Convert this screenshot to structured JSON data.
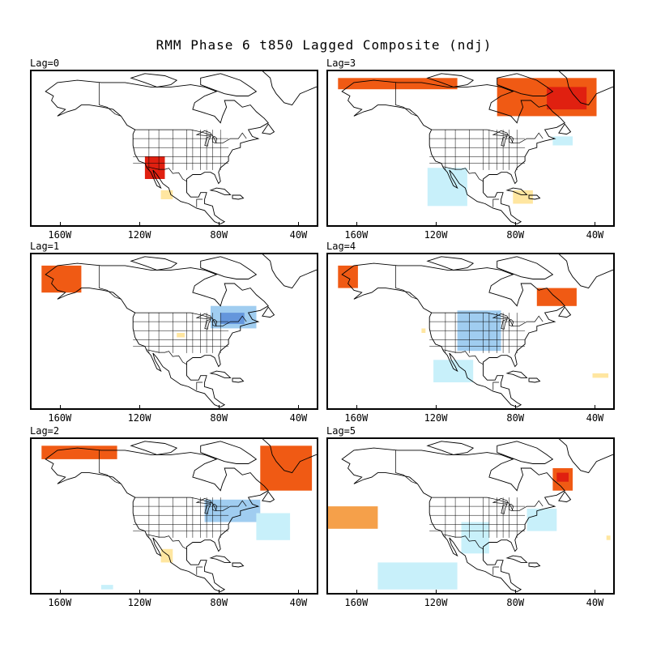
{
  "title": "RMM Phase 6 t850 Lagged Composite (ndj)",
  "x_tick_labels": [
    "160W",
    "120W",
    "80W",
    "40W"
  ],
  "colors": {
    "warm_light": "#ffe6a0",
    "warm_mid": "#f5a04a",
    "warm_strong": "#f05a14",
    "warm_max": "#e02010",
    "cool_light": "#c8f0fa",
    "cool_mid": "#a0cdf0",
    "cool_strong": "#6496dc",
    "coast": "#000000"
  },
  "panels": [
    {
      "id": "lag0",
      "label": "Lag=0",
      "anomalies": [
        {
          "kind": "warm",
          "level": "max",
          "lon": [
            -118,
            -108
          ],
          "lat": [
            27,
            37
          ]
        },
        {
          "kind": "warm",
          "level": "light",
          "lon": [
            -110,
            -104
          ],
          "lat": [
            18,
            22
          ]
        }
      ]
    },
    {
      "id": "lag3",
      "label": "Lag=3",
      "anomalies": [
        {
          "kind": "warm",
          "level": "strong",
          "lon": [
            -170,
            -110
          ],
          "lat": [
            67,
            72
          ]
        },
        {
          "kind": "warm",
          "level": "strong",
          "lon": [
            -90,
            -40
          ],
          "lat": [
            55,
            72
          ]
        },
        {
          "kind": "warm",
          "level": "max",
          "lon": [
            -65,
            -45
          ],
          "lat": [
            58,
            68
          ]
        },
        {
          "kind": "cool",
          "level": "light",
          "lon": [
            -125,
            -105
          ],
          "lat": [
            15,
            32
          ]
        },
        {
          "kind": "cool",
          "level": "light",
          "lon": [
            -62,
            -52
          ],
          "lat": [
            42,
            46
          ]
        },
        {
          "kind": "warm",
          "level": "light",
          "lon": [
            -82,
            -72
          ],
          "lat": [
            16,
            22
          ]
        }
      ]
    },
    {
      "id": "lag1",
      "label": "Lag=1",
      "anomalies": [
        {
          "kind": "warm",
          "level": "strong",
          "lon": [
            -170,
            -150
          ],
          "lat": [
            58,
            70
          ]
        },
        {
          "kind": "cool",
          "level": "mid",
          "lon": [
            -85,
            -62
          ],
          "lat": [
            42,
            52
          ]
        },
        {
          "kind": "cool",
          "level": "strong",
          "lon": [
            -80,
            -68
          ],
          "lat": [
            44,
            49
          ]
        },
        {
          "kind": "warm",
          "level": "light",
          "lon": [
            -102,
            -98
          ],
          "lat": [
            38,
            40
          ]
        }
      ]
    },
    {
      "id": "lag4",
      "label": "Lag=4",
      "anomalies": [
        {
          "kind": "warm",
          "level": "strong",
          "lon": [
            -170,
            -160
          ],
          "lat": [
            60,
            70
          ]
        },
        {
          "kind": "warm",
          "level": "strong",
          "lon": [
            -70,
            -50
          ],
          "lat": [
            52,
            60
          ]
        },
        {
          "kind": "cool",
          "level": "mid",
          "lon": [
            -110,
            -88
          ],
          "lat": [
            32,
            50
          ]
        },
        {
          "kind": "cool",
          "level": "light",
          "lon": [
            -122,
            -102
          ],
          "lat": [
            18,
            28
          ]
        },
        {
          "kind": "warm",
          "level": "light",
          "lon": [
            -42,
            -34
          ],
          "lat": [
            20,
            22
          ]
        },
        {
          "kind": "warm",
          "level": "light",
          "lon": [
            -128,
            -126
          ],
          "lat": [
            40,
            42
          ]
        }
      ]
    },
    {
      "id": "lag2",
      "label": "Lag=2",
      "anomalies": [
        {
          "kind": "warm",
          "level": "strong",
          "lon": [
            -170,
            -132
          ],
          "lat": [
            66,
            72
          ]
        },
        {
          "kind": "warm",
          "level": "strong",
          "lon": [
            -60,
            -34
          ],
          "lat": [
            52,
            72
          ]
        },
        {
          "kind": "cool",
          "level": "mid",
          "lon": [
            -88,
            -60
          ],
          "lat": [
            38,
            48
          ]
        },
        {
          "kind": "cool",
          "level": "light",
          "lon": [
            -62,
            -45
          ],
          "lat": [
            30,
            42
          ]
        },
        {
          "kind": "warm",
          "level": "light",
          "lon": [
            -110,
            -104
          ],
          "lat": [
            20,
            26
          ]
        },
        {
          "kind": "cool",
          "level": "light",
          "lon": [
            -140,
            -134
          ],
          "lat": [
            8,
            10
          ]
        }
      ]
    },
    {
      "id": "lag5",
      "label": "Lag=5",
      "anomalies": [
        {
          "kind": "warm",
          "level": "strong",
          "lon": [
            -62,
            -52
          ],
          "lat": [
            52,
            62
          ]
        },
        {
          "kind": "warm",
          "level": "max",
          "lon": [
            -60,
            -54
          ],
          "lat": [
            56,
            60
          ]
        },
        {
          "kind": "warm",
          "level": "mid",
          "lon": [
            -175,
            -150
          ],
          "lat": [
            35,
            45
          ]
        },
        {
          "kind": "cool",
          "level": "light",
          "lon": [
            -150,
            -110
          ],
          "lat": [
            8,
            20
          ]
        },
        {
          "kind": "cool",
          "level": "light",
          "lon": [
            -108,
            -94
          ],
          "lat": [
            24,
            38
          ]
        },
        {
          "kind": "cool",
          "level": "light",
          "lon": [
            -75,
            -60
          ],
          "lat": [
            34,
            44
          ]
        },
        {
          "kind": "warm",
          "level": "light",
          "lon": [
            -35,
            -33
          ],
          "lat": [
            30,
            32
          ]
        }
      ]
    }
  ]
}
